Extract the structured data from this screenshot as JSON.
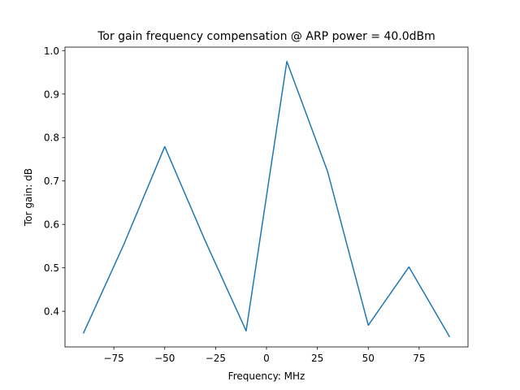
{
  "chart_data": {
    "type": "line",
    "title": "Tor gain frequency compensation @ ARP power = 40.0dBm",
    "xlabel": "Frequency: MHz",
    "ylabel": "Tor gain: dB",
    "xlim": [
      -99,
      99
    ],
    "ylim": [
      0.318,
      1.008
    ],
    "xticks": [
      -75,
      -50,
      -25,
      0,
      25,
      50,
      75
    ],
    "yticks": [
      0.4,
      0.5,
      0.6,
      0.7,
      0.8,
      0.9,
      1.0
    ],
    "xtick_labels": [
      "−75",
      "−50",
      "−25",
      "0",
      "25",
      "50",
      "75"
    ],
    "ytick_labels": [
      "0.4",
      "0.5",
      "0.6",
      "0.7",
      "0.8",
      "0.9",
      "1.0"
    ],
    "grid": false,
    "series": [
      {
        "color": "#1f77b4",
        "x": [
          -90,
          -70,
          -50,
          -30,
          -10,
          10,
          30,
          50,
          70,
          90
        ],
        "y": [
          0.349,
          0.555,
          0.779,
          0.561,
          0.355,
          0.975,
          0.722,
          0.368,
          0.502,
          0.341
        ]
      }
    ]
  }
}
